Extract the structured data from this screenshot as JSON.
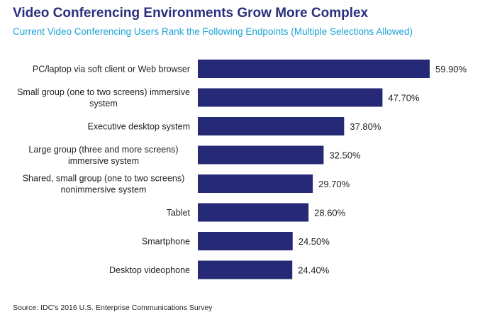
{
  "header": {
    "title": "Video Conferencing Environments Grow More Complex",
    "subtitle": "Current Video Conferencing Users Rank the Following Endpoints (Multiple Selections Allowed)"
  },
  "footer": {
    "source": "Source: IDC's 2016 U.S. Enterprise Communications Survey"
  },
  "chart_data": {
    "type": "bar",
    "orientation": "horizontal",
    "title": "Video Conferencing Environments Grow More Complex",
    "subtitle": "Current Video Conferencing Users Rank the Following Endpoints (Multiple Selections Allowed)",
    "categories": [
      [
        "PC/laptop via soft client or Web browser"
      ],
      [
        "Small group (one to two screens) immersive",
        "system"
      ],
      [
        "Executive desktop system"
      ],
      [
        "Large group (three and more screens)",
        "immersive system"
      ],
      [
        "Shared, small group (one to two screens)",
        "nonimmersive system"
      ],
      [
        "Tablet"
      ],
      [
        "Smartphone"
      ],
      [
        "Desktop videophone"
      ]
    ],
    "values": [
      59.9,
      47.7,
      37.8,
      32.5,
      29.7,
      28.6,
      24.5,
      24.4
    ],
    "value_labels": [
      "59.90%",
      "47.70%",
      "37.80%",
      "32.50%",
      "29.70%",
      "28.60%",
      "24.50%",
      "24.40%"
    ],
    "xlim": [
      0,
      59.9
    ],
    "bar_color": "#262a76",
    "grid": false,
    "legend": "none"
  }
}
